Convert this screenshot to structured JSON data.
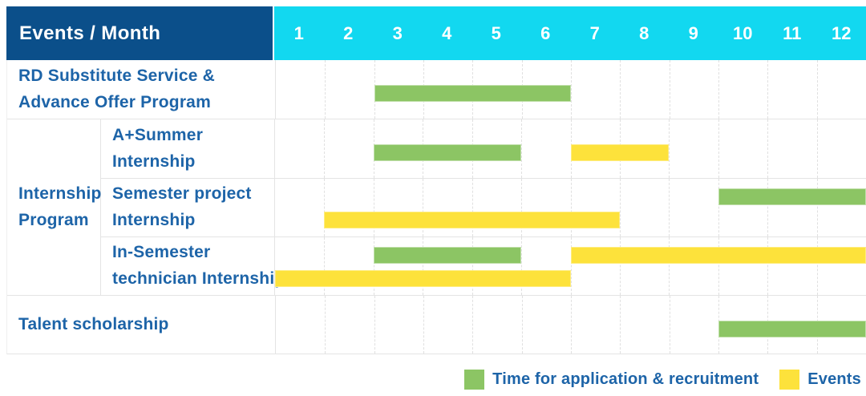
{
  "header": {
    "title": "Events / Month",
    "months": [
      "1",
      "2",
      "3",
      "4",
      "5",
      "6",
      "7",
      "8",
      "9",
      "10",
      "11",
      "12"
    ]
  },
  "legend": {
    "application": "Time for application & recruitment",
    "events": "Events"
  },
  "colors": {
    "navy": "#0b4f8a",
    "cyan": "#12d8f0",
    "green": "#8cc564",
    "yellow": "#fde23b",
    "text": "#1d64a8",
    "grid": "#e4e4e4"
  },
  "gantt": {
    "sections": [
      {
        "type": "row",
        "row": {
          "key": "rd-substitute-service",
          "label_lines": [
            "RD Substitute Service &",
            "Advance Offer Program"
          ],
          "bars": [
            {
              "kind": "application",
              "start": 3,
              "end": 6,
              "line": "single"
            }
          ]
        }
      },
      {
        "type": "group",
        "key": "internship-program",
        "label_lines": [
          "Internship",
          "Program"
        ],
        "rows": [
          {
            "key": "a-plus-summer-internship",
            "label_lines": [
              "A+Summer",
              "Internship"
            ],
            "bars": [
              {
                "kind": "application",
                "start": 3,
                "end": 5,
                "line": "single"
              },
              {
                "kind": "event",
                "start": 7,
                "end": 8,
                "line": "single"
              }
            ]
          },
          {
            "key": "semester-project-internship",
            "label_lines": [
              "Semester project",
              "Internship"
            ],
            "bars": [
              {
                "kind": "application",
                "start": 10,
                "end": 12,
                "line": "top"
              },
              {
                "kind": "event",
                "start": 2,
                "end": 7,
                "line": "bottom"
              }
            ]
          },
          {
            "key": "in-semester-technician-internship",
            "label_lines": [
              "In-Semester",
              "technician Internship"
            ],
            "bars": [
              {
                "kind": "application",
                "start": 3,
                "end": 5,
                "line": "top"
              },
              {
                "kind": "event",
                "start": 7,
                "end": 12,
                "line": "top"
              },
              {
                "kind": "event",
                "start": 1,
                "end": 6,
                "line": "bottom"
              }
            ]
          }
        ]
      },
      {
        "type": "row",
        "row": {
          "key": "talent-scholarship",
          "label_lines": [
            "Talent scholarship"
          ],
          "bars": [
            {
              "kind": "application",
              "start": 10,
              "end": 12,
              "line": "single"
            }
          ]
        }
      }
    ]
  },
  "chart_data": {
    "type": "bar",
    "subtype": "gantt-schedule",
    "title": "Events / Month",
    "xlabel": "Month",
    "ylabel": "Event",
    "x_ticks": [
      1,
      2,
      3,
      4,
      5,
      6,
      7,
      8,
      9,
      10,
      11,
      12
    ],
    "x_range": [
      1,
      12
    ],
    "grid": true,
    "legend_position": "bottom-right",
    "series": [
      {
        "name": "Time for application & recruitment",
        "color": "#8cc564"
      },
      {
        "name": "Events",
        "color": "#fde23b"
      }
    ],
    "rows": [
      {
        "label": "RD Substitute Service & Advance Offer Program",
        "group": null,
        "spans": [
          {
            "series": "Time for application & recruitment",
            "start_month": 3,
            "end_month": 6
          }
        ]
      },
      {
        "label": "A+Summer Internship",
        "group": "Internship Program",
        "spans": [
          {
            "series": "Time for application & recruitment",
            "start_month": 3,
            "end_month": 5
          },
          {
            "series": "Events",
            "start_month": 7,
            "end_month": 8
          }
        ]
      },
      {
        "label": "Semester project Internship",
        "group": "Internship Program",
        "spans": [
          {
            "series": "Time for application & recruitment",
            "start_month": 10,
            "end_month": 12
          },
          {
            "series": "Events",
            "start_month": 2,
            "end_month": 7
          }
        ]
      },
      {
        "label": "In-Semester technician Internship",
        "group": "Internship Program",
        "spans": [
          {
            "series": "Time for application & recruitment",
            "start_month": 3,
            "end_month": 5
          },
          {
            "series": "Events",
            "start_month": 7,
            "end_month": 12
          },
          {
            "series": "Events",
            "start_month": 1,
            "end_month": 6
          }
        ]
      },
      {
        "label": "Talent scholarship",
        "group": null,
        "spans": [
          {
            "series": "Time for application & recruitment",
            "start_month": 10,
            "end_month": 12
          }
        ]
      }
    ]
  }
}
